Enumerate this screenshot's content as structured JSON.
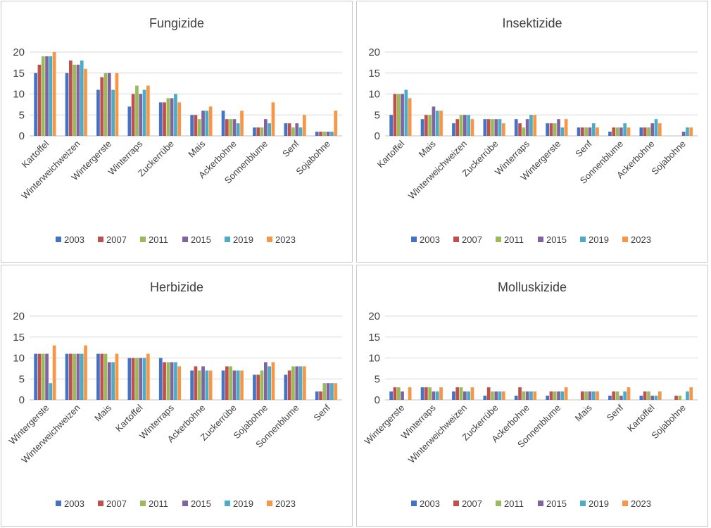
{
  "chart_data": [
    {
      "type": "bar",
      "title": "Fungizide",
      "ylim": [
        0,
        20
      ],
      "yticks": [
        "0",
        "5",
        "10",
        "15",
        "20"
      ],
      "grid": true,
      "legend": "bottom",
      "categories": [
        "Kartoffel",
        "Winterweichweizen",
        "Wintergerste",
        "Winterraps",
        "Zuckerrübe",
        "Mais",
        "Ackerbohne",
        "Sonnenblume",
        "Senf",
        "Sojabohne"
      ],
      "series": [
        {
          "name": "2003",
          "values": [
            15,
            15,
            11,
            7,
            8,
            5,
            6,
            2,
            3,
            1
          ]
        },
        {
          "name": "2007",
          "values": [
            17,
            18,
            14,
            10,
            8,
            5,
            4,
            2,
            3,
            1
          ]
        },
        {
          "name": "2011",
          "values": [
            19,
            17,
            15,
            12,
            9,
            4,
            4,
            2,
            2,
            1
          ]
        },
        {
          "name": "2015",
          "values": [
            19,
            17,
            15,
            10,
            9,
            6,
            4,
            4,
            3,
            1
          ]
        },
        {
          "name": "2019",
          "values": [
            19,
            18,
            11,
            11,
            10,
            6,
            3,
            3,
            2,
            1
          ]
        },
        {
          "name": "2023",
          "values": [
            20,
            16,
            15,
            12,
            8,
            7,
            6,
            8,
            5,
            6
          ]
        }
      ]
    },
    {
      "type": "bar",
      "title": "Insektizide",
      "ylim": [
        0,
        20
      ],
      "yticks": [
        "0",
        "5",
        "10",
        "15",
        "20"
      ],
      "grid": true,
      "legend": "bottom",
      "categories": [
        "Kartoffel",
        "Mais",
        "Winterweichweizen",
        "Zuckerrübe",
        "Winterraps",
        "Wintergerste",
        "Senf",
        "Sonnenblume",
        "Ackerbohne",
        "Sojabohne"
      ],
      "series": [
        {
          "name": "2003",
          "values": [
            5,
            4,
            3,
            4,
            4,
            3,
            2,
            1,
            2,
            0
          ]
        },
        {
          "name": "2007",
          "values": [
            10,
            5,
            4,
            4,
            3,
            3,
            2,
            2,
            2,
            0
          ]
        },
        {
          "name": "2011",
          "values": [
            10,
            5,
            5,
            4,
            2,
            3,
            2,
            2,
            2,
            0
          ]
        },
        {
          "name": "2015",
          "values": [
            10,
            7,
            5,
            4,
            4,
            4,
            2,
            2,
            3,
            1
          ]
        },
        {
          "name": "2019",
          "values": [
            11,
            6,
            5,
            4,
            5,
            2,
            3,
            3,
            4,
            2
          ]
        },
        {
          "name": "2023",
          "values": [
            9,
            6,
            4,
            3,
            5,
            4,
            2,
            2,
            3,
            2
          ]
        }
      ]
    },
    {
      "type": "bar",
      "title": "Herbizide",
      "ylim": [
        0,
        20
      ],
      "yticks": [
        "0",
        "5",
        "10",
        "15",
        "20"
      ],
      "grid": true,
      "legend": "bottom",
      "categories": [
        "Wintergerste",
        "Winterweichweizen",
        "Mais",
        "Kartoffel",
        "Winterraps",
        "Ackerbohne",
        "Zuckerrübe",
        "Sojabohne",
        "Sonnenblume",
        "Senf"
      ],
      "series": [
        {
          "name": "2003",
          "values": [
            11,
            11,
            11,
            10,
            10,
            7,
            7,
            6,
            6,
            2
          ]
        },
        {
          "name": "2007",
          "values": [
            11,
            11,
            11,
            10,
            9,
            8,
            8,
            6,
            7,
            2
          ]
        },
        {
          "name": "2011",
          "values": [
            11,
            11,
            11,
            10,
            9,
            7,
            8,
            7,
            8,
            4
          ]
        },
        {
          "name": "2015",
          "values": [
            11,
            11,
            9,
            10,
            9,
            8,
            7,
            9,
            8,
            4
          ]
        },
        {
          "name": "2019",
          "values": [
            4,
            11,
            9,
            10,
            9,
            7,
            7,
            8,
            8,
            4
          ]
        },
        {
          "name": "2023",
          "values": [
            13,
            13,
            11,
            11,
            8,
            7,
            7,
            9,
            8,
            4
          ]
        }
      ]
    },
    {
      "type": "bar",
      "title": "Molluskizide",
      "ylim": [
        0,
        20
      ],
      "yticks": [
        "0",
        "5",
        "10",
        "15",
        "20"
      ],
      "grid": true,
      "legend": "bottom",
      "categories": [
        "Wintergerste",
        "Winterraps",
        "Winterweichweizen",
        "Zuckerrübe",
        "Ackerbohne",
        "Sonnenblume",
        "Mais",
        "Senf",
        "Kartoffel",
        "Sojabohne"
      ],
      "series": [
        {
          "name": "2003",
          "values": [
            2,
            3,
            2,
            1,
            1,
            1,
            0,
            1,
            1,
            0
          ]
        },
        {
          "name": "2007",
          "values": [
            3,
            3,
            3,
            3,
            3,
            2,
            2,
            2,
            2,
            1
          ]
        },
        {
          "name": "2011",
          "values": [
            3,
            3,
            3,
            2,
            2,
            2,
            2,
            2,
            2,
            1
          ]
        },
        {
          "name": "2015",
          "values": [
            2,
            2,
            2,
            2,
            2,
            2,
            2,
            1,
            1,
            0
          ]
        },
        {
          "name": "2019",
          "values": [
            0,
            2,
            2,
            2,
            2,
            2,
            2,
            2,
            1,
            2
          ]
        },
        {
          "name": "2023",
          "values": [
            3,
            3,
            3,
            2,
            2,
            3,
            2,
            3,
            2,
            3
          ]
        }
      ]
    }
  ],
  "series_colors": [
    "#4472c4",
    "#c0504d",
    "#9bbb59",
    "#8064a2",
    "#4bacc6",
    "#f79646"
  ]
}
